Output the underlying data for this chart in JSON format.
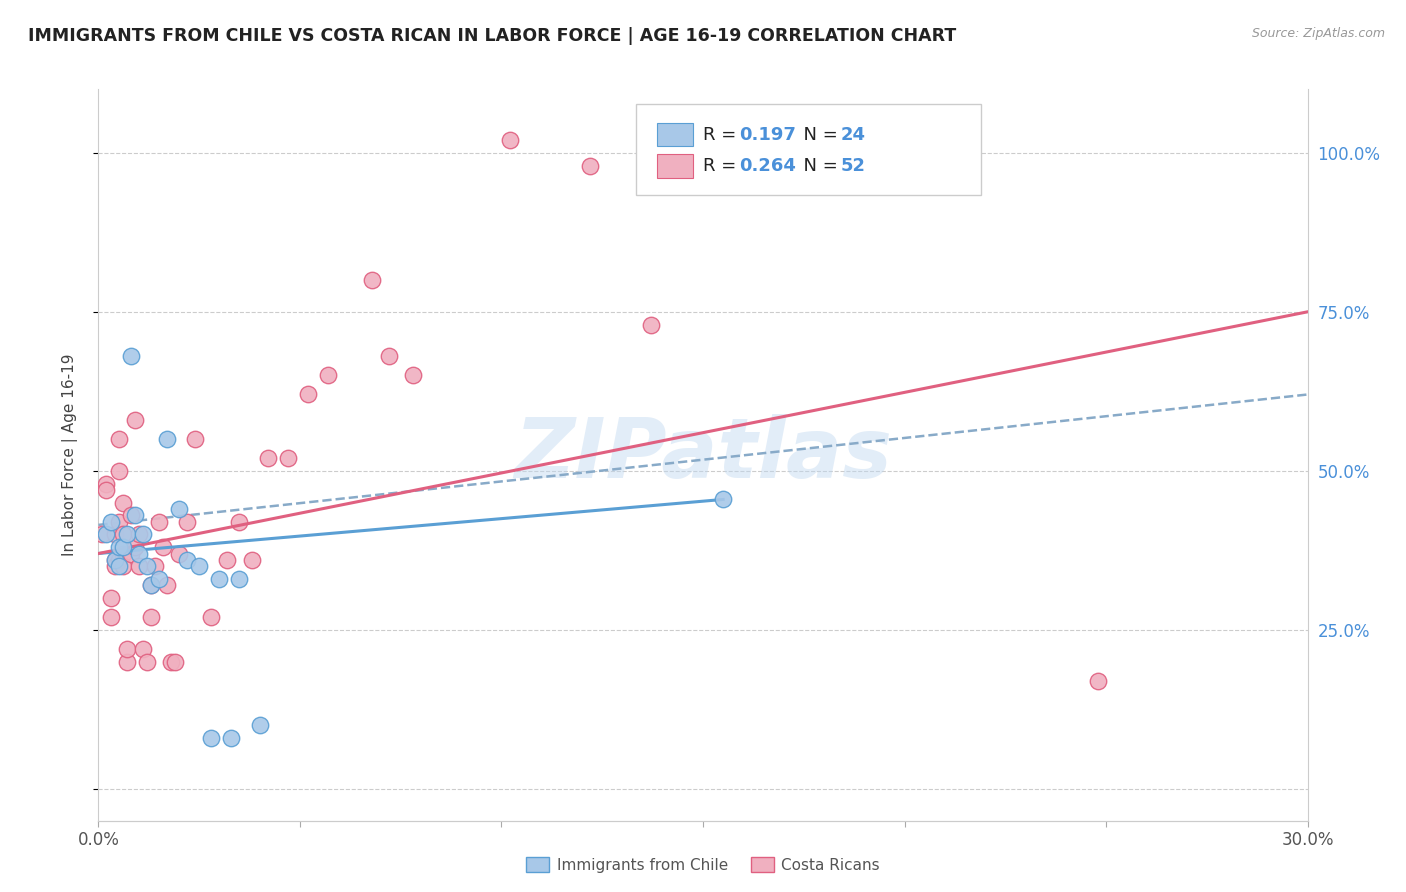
{
  "title": "IMMIGRANTS FROM CHILE VS COSTA RICAN IN LABOR FORCE | AGE 16-19 CORRELATION CHART",
  "source": "Source: ZipAtlas.com",
  "ylabel": "In Labor Force | Age 16-19",
  "watermark": "ZIPatlas",
  "chile_color": "#a8c8e8",
  "chile_color_edge": "#5a9fd4",
  "costarica_color": "#f0b0c0",
  "costarica_color_edge": "#e06080",
  "blue_line_color": "#5a9fd4",
  "pink_line_color": "#e06080",
  "dashed_line_color": "#88aac8",
  "legend_blue": "#4a90d9",
  "xlim": [
    0.0,
    0.3
  ],
  "ylim": [
    -0.05,
    1.1
  ],
  "chile_scatter": [
    [
      0.002,
      0.4
    ],
    [
      0.003,
      0.42
    ],
    [
      0.004,
      0.36
    ],
    [
      0.005,
      0.38
    ],
    [
      0.005,
      0.35
    ],
    [
      0.006,
      0.38
    ],
    [
      0.007,
      0.4
    ],
    [
      0.008,
      0.68
    ],
    [
      0.009,
      0.43
    ],
    [
      0.01,
      0.37
    ],
    [
      0.011,
      0.4
    ],
    [
      0.012,
      0.35
    ],
    [
      0.013,
      0.32
    ],
    [
      0.015,
      0.33
    ],
    [
      0.017,
      0.55
    ],
    [
      0.02,
      0.44
    ],
    [
      0.022,
      0.36
    ],
    [
      0.025,
      0.35
    ],
    [
      0.03,
      0.33
    ],
    [
      0.035,
      0.33
    ],
    [
      0.028,
      0.08
    ],
    [
      0.033,
      0.08
    ],
    [
      0.04,
      0.1
    ],
    [
      0.155,
      0.455
    ]
  ],
  "costarica_scatter": [
    [
      0.001,
      0.4
    ],
    [
      0.002,
      0.48
    ],
    [
      0.002,
      0.47
    ],
    [
      0.003,
      0.3
    ],
    [
      0.003,
      0.27
    ],
    [
      0.004,
      0.4
    ],
    [
      0.004,
      0.36
    ],
    [
      0.004,
      0.35
    ],
    [
      0.005,
      0.36
    ],
    [
      0.005,
      0.42
    ],
    [
      0.005,
      0.5
    ],
    [
      0.005,
      0.55
    ],
    [
      0.006,
      0.37
    ],
    [
      0.006,
      0.35
    ],
    [
      0.006,
      0.4
    ],
    [
      0.006,
      0.45
    ],
    [
      0.007,
      0.2
    ],
    [
      0.007,
      0.22
    ],
    [
      0.008,
      0.43
    ],
    [
      0.008,
      0.37
    ],
    [
      0.009,
      0.38
    ],
    [
      0.009,
      0.58
    ],
    [
      0.01,
      0.4
    ],
    [
      0.01,
      0.35
    ],
    [
      0.011,
      0.22
    ],
    [
      0.012,
      0.2
    ],
    [
      0.013,
      0.27
    ],
    [
      0.013,
      0.32
    ],
    [
      0.014,
      0.35
    ],
    [
      0.015,
      0.42
    ],
    [
      0.016,
      0.38
    ],
    [
      0.017,
      0.32
    ],
    [
      0.018,
      0.2
    ],
    [
      0.019,
      0.2
    ],
    [
      0.02,
      0.37
    ],
    [
      0.022,
      0.42
    ],
    [
      0.024,
      0.55
    ],
    [
      0.028,
      0.27
    ],
    [
      0.032,
      0.36
    ],
    [
      0.035,
      0.42
    ],
    [
      0.038,
      0.36
    ],
    [
      0.042,
      0.52
    ],
    [
      0.047,
      0.52
    ],
    [
      0.052,
      0.62
    ],
    [
      0.057,
      0.65
    ],
    [
      0.068,
      0.8
    ],
    [
      0.072,
      0.68
    ],
    [
      0.078,
      0.65
    ],
    [
      0.102,
      1.02
    ],
    [
      0.122,
      0.98
    ],
    [
      0.137,
      0.73
    ],
    [
      0.248,
      0.17
    ]
  ],
  "chile_line_x": [
    0.0,
    0.155
  ],
  "chile_line_y": [
    0.37,
    0.455
  ],
  "dashed_line_x": [
    0.0,
    0.3
  ],
  "dashed_line_y": [
    0.415,
    0.62
  ],
  "costarica_line_x": [
    0.0,
    0.3
  ],
  "costarica_line_y": [
    0.37,
    0.75
  ],
  "x_ticks": [
    0.0,
    0.05,
    0.1,
    0.15,
    0.2,
    0.25,
    0.3
  ],
  "y_ticks": [
    0.0,
    0.25,
    0.5,
    0.75,
    1.0
  ]
}
